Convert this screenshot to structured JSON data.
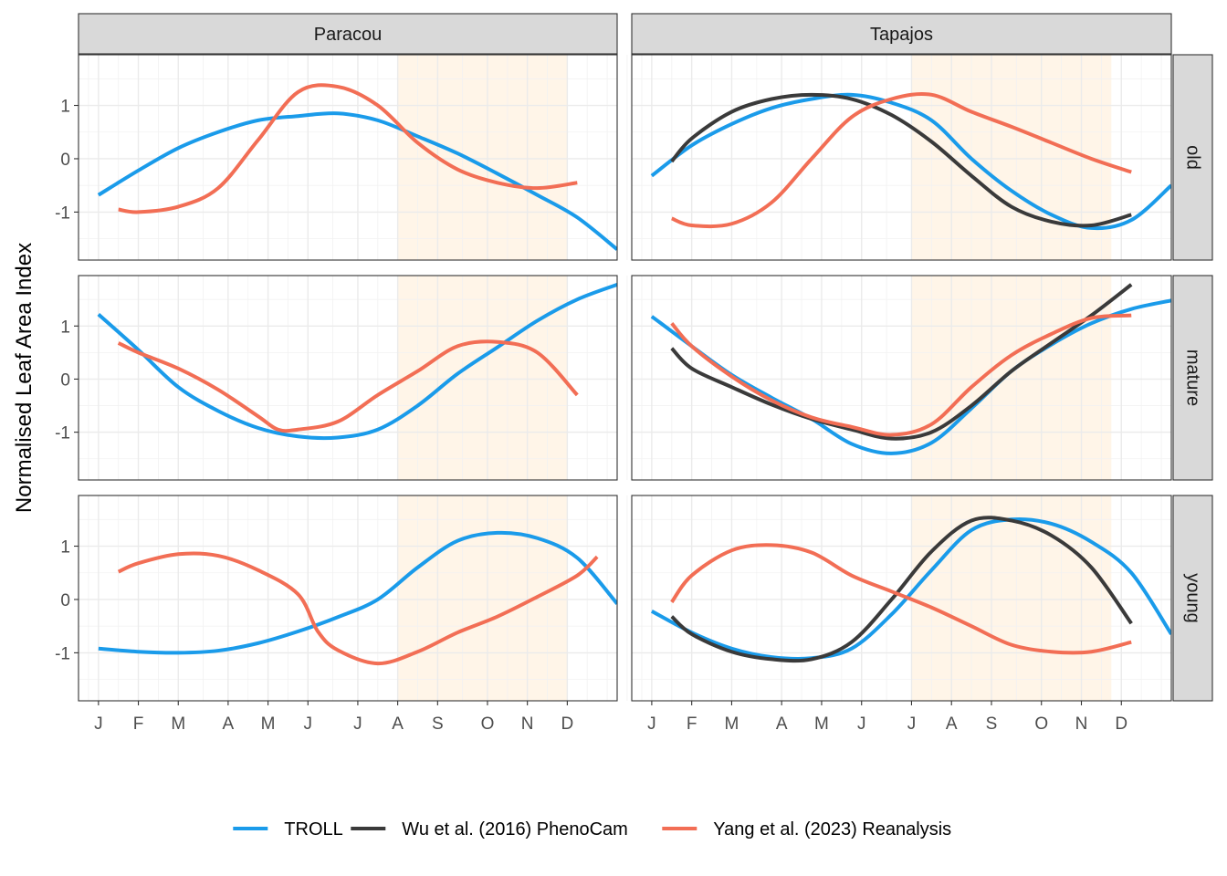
{
  "chart_data": {
    "type": "line",
    "ylabel": "Normalised Leaf Area Index",
    "xlabel": "",
    "x_tick_labels": [
      "J",
      "F",
      "M",
      "A",
      "M",
      "J",
      "J",
      "A",
      "S",
      "O",
      "N",
      "D"
    ],
    "x_tick_months": [
      1,
      2,
      3,
      4.25,
      5.25,
      6.25,
      7.5,
      8.5,
      9.5,
      10.75,
      11.75,
      12.75
    ],
    "xlim": [
      0.5,
      14
    ],
    "ylim": [
      -1.9,
      1.95
    ],
    "y_ticks": [
      1,
      0,
      -1
    ],
    "y_tick_labels": [
      "1",
      "0",
      "-1"
    ],
    "grid": true,
    "legend_position": "bottom",
    "facet_columns": [
      "Paracou",
      "Tapajos"
    ],
    "facet_rows": [
      "old",
      "mature",
      "young"
    ],
    "dry_season": {
      "Paracou": [
        8.5,
        12.75
      ],
      "Tapajos": [
        7.5,
        12.5
      ]
    },
    "colors": {
      "TROLL": "#1a9bea",
      "PhenoCam": "#3a3a3a",
      "Reanalysis": "#f26e55",
      "dry_season_fill": "#fff5e8",
      "strip_fill": "#d9d9d9"
    },
    "legend": [
      {
        "key": "TROLL",
        "label": "TROLL"
      },
      {
        "key": "PhenoCam",
        "label": "Wu et al. (2016) PhenoCam"
      },
      {
        "key": "Reanalysis",
        "label": "Yang et al. (2023) Reanalysis"
      }
    ],
    "panels": [
      {
        "col": "Paracou",
        "row": "old",
        "series": [
          {
            "key": "TROLL",
            "points": [
              [
                1,
                -0.68
              ],
              [
                2,
                -0.22
              ],
              [
                3,
                0.2
              ],
              [
                4,
                0.5
              ],
              [
                5,
                0.72
              ],
              [
                6,
                0.8
              ],
              [
                7,
                0.85
              ],
              [
                8,
                0.72
              ],
              [
                9,
                0.42
              ],
              [
                10,
                0.1
              ],
              [
                11,
                -0.28
              ],
              [
                12,
                -0.68
              ],
              [
                13,
                -1.1
              ],
              [
                14,
                -1.7
              ]
            ]
          },
          {
            "key": "Reanalysis",
            "points": [
              [
                1.5,
                -0.95
              ],
              [
                2,
                -1.0
              ],
              [
                3,
                -0.9
              ],
              [
                4,
                -0.55
              ],
              [
                5,
                0.35
              ],
              [
                6,
                1.25
              ],
              [
                7,
                1.35
              ],
              [
                8,
                1.0
              ],
              [
                9,
                0.3
              ],
              [
                10,
                -0.2
              ],
              [
                11,
                -0.45
              ],
              [
                12,
                -0.55
              ],
              [
                13,
                -0.45
              ]
            ]
          }
        ]
      },
      {
        "col": "Paracou",
        "row": "mature",
        "series": [
          {
            "key": "TROLL",
            "points": [
              [
                1,
                1.22
              ],
              [
                2,
                0.55
              ],
              [
                3,
                -0.15
              ],
              [
                4,
                -0.6
              ],
              [
                5,
                -0.92
              ],
              [
                6,
                -1.08
              ],
              [
                7,
                -1.1
              ],
              [
                8,
                -0.95
              ],
              [
                9,
                -0.5
              ],
              [
                10,
                0.1
              ],
              [
                11,
                0.6
              ],
              [
                12,
                1.1
              ],
              [
                13,
                1.5
              ],
              [
                14,
                1.78
              ]
            ]
          },
          {
            "key": "Reanalysis",
            "points": [
              [
                1.5,
                0.68
              ],
              [
                2,
                0.5
              ],
              [
                3,
                0.2
              ],
              [
                4,
                -0.2
              ],
              [
                5,
                -0.7
              ],
              [
                5.5,
                -0.95
              ],
              [
                6,
                -0.95
              ],
              [
                7,
                -0.8
              ],
              [
                8,
                -0.3
              ],
              [
                9,
                0.15
              ],
              [
                10,
                0.62
              ],
              [
                11,
                0.7
              ],
              [
                12,
                0.5
              ],
              [
                13,
                -0.3
              ]
            ]
          }
        ]
      },
      {
        "col": "Paracou",
        "row": "young",
        "series": [
          {
            "key": "TROLL",
            "points": [
              [
                1,
                -0.92
              ],
              [
                2,
                -0.98
              ],
              [
                3,
                -1.0
              ],
              [
                4,
                -0.96
              ],
              [
                5,
                -0.82
              ],
              [
                6,
                -0.6
              ],
              [
                7,
                -0.33
              ],
              [
                8,
                0.0
              ],
              [
                9,
                0.6
              ],
              [
                10,
                1.1
              ],
              [
                11,
                1.25
              ],
              [
                12,
                1.15
              ],
              [
                13,
                0.78
              ],
              [
                14,
                -0.08
              ]
            ]
          },
          {
            "key": "Reanalysis",
            "points": [
              [
                1.5,
                0.52
              ],
              [
                2,
                0.68
              ],
              [
                3,
                0.85
              ],
              [
                4,
                0.82
              ],
              [
                5,
                0.55
              ],
              [
                6,
                0.1
              ],
              [
                6.5,
                -0.6
              ],
              [
                7,
                -0.95
              ],
              [
                8,
                -1.2
              ],
              [
                9,
                -0.98
              ],
              [
                10,
                -0.62
              ],
              [
                11,
                -0.32
              ],
              [
                12,
                0.05
              ],
              [
                13,
                0.45
              ],
              [
                13.5,
                0.8
              ]
            ]
          }
        ]
      },
      {
        "col": "Tapajos",
        "row": "old",
        "series": [
          {
            "key": "TROLL",
            "points": [
              [
                1,
                -0.32
              ],
              [
                2,
                0.25
              ],
              [
                3,
                0.65
              ],
              [
                4,
                0.95
              ],
              [
                5,
                1.12
              ],
              [
                6,
                1.2
              ],
              [
                7,
                1.05
              ],
              [
                8,
                0.72
              ],
              [
                9,
                0.0
              ],
              [
                10,
                -0.6
              ],
              [
                11,
                -1.05
              ],
              [
                12,
                -1.3
              ],
              [
                13,
                -1.15
              ],
              [
                14,
                -0.5
              ]
            ]
          },
          {
            "key": "PhenoCam",
            "points": [
              [
                1.5,
                -0.05
              ],
              [
                2,
                0.38
              ],
              [
                3,
                0.88
              ],
              [
                4,
                1.12
              ],
              [
                5,
                1.2
              ],
              [
                6,
                1.12
              ],
              [
                7,
                0.82
              ],
              [
                8,
                0.32
              ],
              [
                9,
                -0.32
              ],
              [
                10,
                -0.9
              ],
              [
                11,
                -1.18
              ],
              [
                12,
                -1.25
              ],
              [
                13,
                -1.05
              ]
            ]
          },
          {
            "key": "Reanalysis",
            "points": [
              [
                1.5,
                -1.12
              ],
              [
                2,
                -1.25
              ],
              [
                3,
                -1.22
              ],
              [
                4,
                -0.82
              ],
              [
                5,
                0.0
              ],
              [
                6,
                0.78
              ],
              [
                7,
                1.12
              ],
              [
                8,
                1.2
              ],
              [
                9,
                0.88
              ],
              [
                10,
                0.6
              ],
              [
                11,
                0.3
              ],
              [
                12,
                0.0
              ],
              [
                13,
                -0.25
              ]
            ]
          }
        ]
      },
      {
        "col": "Tapajos",
        "row": "mature",
        "series": [
          {
            "key": "TROLL",
            "points": [
              [
                1,
                1.18
              ],
              [
                2,
                0.62
              ],
              [
                3,
                0.08
              ],
              [
                4,
                -0.35
              ],
              [
                5,
                -0.75
              ],
              [
                6,
                -1.22
              ],
              [
                7,
                -1.4
              ],
              [
                8,
                -1.2
              ],
              [
                9,
                -0.55
              ],
              [
                10,
                0.15
              ],
              [
                11,
                0.65
              ],
              [
                12,
                1.05
              ],
              [
                13,
                1.32
              ],
              [
                14,
                1.48
              ]
            ]
          },
          {
            "key": "PhenoCam",
            "points": [
              [
                1.5,
                0.58
              ],
              [
                2,
                0.2
              ],
              [
                3,
                -0.15
              ],
              [
                4,
                -0.48
              ],
              [
                5,
                -0.75
              ],
              [
                6,
                -0.95
              ],
              [
                7,
                -1.12
              ],
              [
                8,
                -1.0
              ],
              [
                9,
                -0.5
              ],
              [
                10,
                0.15
              ],
              [
                11,
                0.68
              ],
              [
                12,
                1.2
              ],
              [
                13,
                1.78
              ]
            ]
          },
          {
            "key": "Reanalysis",
            "points": [
              [
                1.5,
                1.05
              ],
              [
                2,
                0.62
              ],
              [
                3,
                0.05
              ],
              [
                4,
                -0.4
              ],
              [
                5,
                -0.72
              ],
              [
                6,
                -0.9
              ],
              [
                7,
                -1.05
              ],
              [
                8,
                -0.85
              ],
              [
                9,
                -0.15
              ],
              [
                10,
                0.45
              ],
              [
                11,
                0.85
              ],
              [
                12,
                1.15
              ],
              [
                13,
                1.2
              ]
            ]
          }
        ]
      },
      {
        "col": "Tapajos",
        "row": "young",
        "series": [
          {
            "key": "TROLL",
            "points": [
              [
                1,
                -0.22
              ],
              [
                2,
                -0.62
              ],
              [
                3,
                -0.92
              ],
              [
                4,
                -1.08
              ],
              [
                5,
                -1.1
              ],
              [
                6,
                -0.92
              ],
              [
                7,
                -0.28
              ],
              [
                8,
                0.55
              ],
              [
                9,
                1.3
              ],
              [
                10,
                1.5
              ],
              [
                11,
                1.42
              ],
              [
                12,
                1.08
              ],
              [
                13,
                0.5
              ],
              [
                14,
                -0.65
              ]
            ]
          },
          {
            "key": "PhenoCam",
            "points": [
              [
                1.5,
                -0.32
              ],
              [
                2,
                -0.65
              ],
              [
                3,
                -0.98
              ],
              [
                4,
                -1.12
              ],
              [
                5,
                -1.12
              ],
              [
                6,
                -0.8
              ],
              [
                7,
                0.0
              ],
              [
                8,
                0.9
              ],
              [
                9,
                1.48
              ],
              [
                10,
                1.48
              ],
              [
                11,
                1.2
              ],
              [
                12,
                0.6
              ],
              [
                13,
                -0.45
              ]
            ]
          },
          {
            "key": "Reanalysis",
            "points": [
              [
                1.5,
                -0.05
              ],
              [
                2,
                0.45
              ],
              [
                3,
                0.92
              ],
              [
                4,
                1.02
              ],
              [
                5,
                0.88
              ],
              [
                6,
                0.45
              ],
              [
                7,
                0.15
              ],
              [
                8,
                -0.15
              ],
              [
                9,
                -0.5
              ],
              [
                10,
                -0.85
              ],
              [
                11,
                -0.98
              ],
              [
                12,
                -0.98
              ],
              [
                13,
                -0.8
              ]
            ]
          }
        ]
      }
    ]
  }
}
